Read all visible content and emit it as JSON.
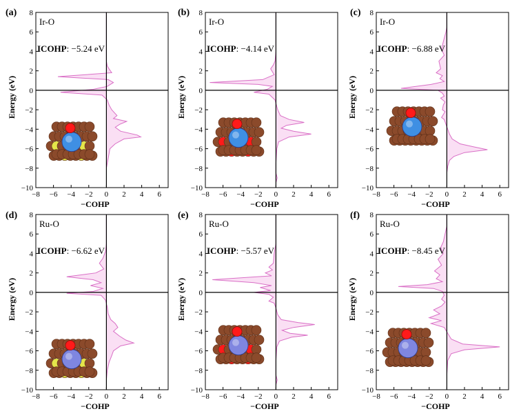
{
  "figure": {
    "line_color": "#d96fc6",
    "fill_color": "#f6c9ec",
    "panels_meta": "six COHP panels, 2 rows x 3 columns"
  },
  "chart_data": [
    {
      "type": "area",
      "panel_label": "(a)",
      "bond": "Ir-O",
      "icohp_label": "ICOHP",
      "icohp_value": ": −5.24 eV",
      "xlabel": "−COHP",
      "ylabel": "Energy (eV)",
      "xlim": [
        -8,
        7
      ],
      "ylim": [
        -10,
        8
      ],
      "xticks": [
        "−8",
        "−6",
        "−4",
        "−2",
        "0",
        "2",
        "4",
        "6"
      ],
      "yticks": [
        "−10",
        "−8",
        "−6",
        "−4",
        "−2",
        "0",
        "2",
        "4",
        "6",
        "8"
      ],
      "structure_metal_color": "#3f8fe3",
      "structure_dopant_color": "#e4e54a",
      "structure_icon": "catalyst-slab-icon",
      "series": [
        {
          "points": [
            [
              0,
              8
            ],
            [
              0,
              3
            ],
            [
              0.1,
              2.5
            ],
            [
              0.3,
              2.2
            ],
            [
              0.6,
              1.8
            ],
            [
              -5.5,
              1.4
            ],
            [
              0.2,
              1.1
            ],
            [
              0.8,
              0.8
            ],
            [
              0.1,
              0.4
            ],
            [
              -1.5,
              0.1
            ],
            [
              -5.2,
              -0.2
            ],
            [
              -0.5,
              -0.5
            ],
            [
              0.1,
              -1
            ],
            [
              0.3,
              -1.5
            ],
            [
              0.6,
              -2
            ],
            [
              1.2,
              -2.6
            ],
            [
              0.8,
              -2.9
            ],
            [
              2.3,
              -3.2
            ],
            [
              1.5,
              -3.5
            ],
            [
              1,
              -3.8
            ],
            [
              1.6,
              -4.2
            ],
            [
              3.5,
              -4.6
            ],
            [
              3.9,
              -4.8
            ],
            [
              2,
              -5
            ],
            [
              1,
              -5.5
            ],
            [
              0.4,
              -6
            ],
            [
              0.2,
              -7
            ],
            [
              0.1,
              -7.5
            ],
            [
              0,
              -8
            ]
          ]
        }
      ]
    },
    {
      "type": "area",
      "panel_label": "(b)",
      "bond": "Ir-O",
      "icohp_label": "ICOHP",
      "icohp_value": ": −4.14 eV",
      "xlabel": "−COHP",
      "ylabel": "Energy (eV)",
      "xlim": [
        -8,
        7
      ],
      "ylim": [
        -10,
        8
      ],
      "xticks": [
        "−8",
        "−6",
        "−4",
        "−2",
        "0",
        "2",
        "4",
        "6"
      ],
      "yticks": [
        "−10",
        "−8",
        "−6",
        "−4",
        "−2",
        "0",
        "2",
        "4",
        "6",
        "8"
      ],
      "structure_metal_color": "#3f8fe3",
      "structure_dopant_color": "#ff1a1a",
      "structure_icon": "catalyst-slab-icon",
      "series": [
        {
          "points": [
            [
              0,
              8
            ],
            [
              0,
              4
            ],
            [
              -0.1,
              3
            ],
            [
              -0.3,
              2.6
            ],
            [
              -0.6,
              2.2
            ],
            [
              -0.2,
              1.6
            ],
            [
              -1.5,
              1.1
            ],
            [
              -7.5,
              0.8
            ],
            [
              -2,
              0.6
            ],
            [
              -0.4,
              0.4
            ],
            [
              -1,
              0.1
            ],
            [
              -2.5,
              -0.2
            ],
            [
              -0.8,
              -0.4
            ],
            [
              -0.1,
              -1
            ],
            [
              0.2,
              -2
            ],
            [
              0.5,
              -2.6
            ],
            [
              1.5,
              -3
            ],
            [
              3.2,
              -3.3
            ],
            [
              1.2,
              -3.6
            ],
            [
              0.6,
              -3.9
            ],
            [
              2,
              -4.2
            ],
            [
              4,
              -4.5
            ],
            [
              1.5,
              -4.8
            ],
            [
              0.3,
              -5.3
            ],
            [
              0.1,
              -6
            ],
            [
              0,
              -7.5
            ],
            [
              0,
              -8.5
            ],
            [
              0.15,
              -9
            ],
            [
              0,
              -9.5
            ]
          ]
        }
      ]
    },
    {
      "type": "area",
      "panel_label": "(c)",
      "bond": "Ir-O",
      "icohp_label": "ICOHP",
      "icohp_value": ": −6.88 eV",
      "xlabel": "−COHP",
      "ylabel": "Energy (eV)",
      "xlim": [
        -8,
        7
      ],
      "ylim": [
        -10,
        8
      ],
      "xticks": [
        "−8",
        "−6",
        "−4",
        "−2",
        "0",
        "2",
        "4",
        "6"
      ],
      "yticks": [
        "−10",
        "−8",
        "−6",
        "−4",
        "−2",
        "0",
        "2",
        "4",
        "6",
        "8"
      ],
      "structure_metal_color": "#3f8fe3",
      "structure_dopant_color": "#8b4a2b",
      "structure_icon": "catalyst-slab-icon",
      "series": [
        {
          "points": [
            [
              0,
              8
            ],
            [
              0,
              6.5
            ],
            [
              -0.1,
              6
            ],
            [
              -0.4,
              5
            ],
            [
              -0.6,
              4.2
            ],
            [
              -0.3,
              3.6
            ],
            [
              -0.9,
              3
            ],
            [
              -0.7,
              2.2
            ],
            [
              -1.2,
              1.8
            ],
            [
              -0.5,
              1.5
            ],
            [
              -0.8,
              1.2
            ],
            [
              -0.3,
              0.9
            ],
            [
              -1.8,
              0.6
            ],
            [
              -5.2,
              0.2
            ],
            [
              -1,
              0
            ],
            [
              -0.5,
              -0.3
            ],
            [
              -0.3,
              -0.6
            ],
            [
              -0.7,
              -0.8
            ],
            [
              -0.2,
              -1.2
            ],
            [
              -0.4,
              -1.5
            ],
            [
              -0.5,
              -2
            ],
            [
              -0.2,
              -2.2
            ],
            [
              -0.6,
              -2.8
            ],
            [
              -0.3,
              -3
            ],
            [
              -0.1,
              -3.5
            ],
            [
              0.1,
              -4
            ],
            [
              0.3,
              -4.5
            ],
            [
              0.6,
              -5
            ],
            [
              1.5,
              -5.5
            ],
            [
              3,
              -5.8
            ],
            [
              4.6,
              -6.1
            ],
            [
              2,
              -6.4
            ],
            [
              0.8,
              -6.8
            ],
            [
              0.3,
              -7.2
            ],
            [
              0.1,
              -7.8
            ],
            [
              0,
              -8.5
            ]
          ]
        }
      ]
    },
    {
      "type": "area",
      "panel_label": "(d)",
      "bond": "Ru-O",
      "icohp_label": "ICOHP",
      "icohp_value": ": −6.62 eV",
      "xlabel": "−COHP",
      "ylabel": "Energy (eV)",
      "xlim": [
        -8,
        7
      ],
      "ylim": [
        -10,
        8
      ],
      "xticks": [
        "−8",
        "−6",
        "−4",
        "−2",
        "0",
        "2",
        "4",
        "6"
      ],
      "yticks": [
        "−10",
        "−8",
        "−6",
        "−4",
        "−2",
        "0",
        "2",
        "4",
        "6",
        "8"
      ],
      "structure_metal_color": "#7f86e0",
      "structure_dopant_color": "#e4e54a",
      "structure_icon": "catalyst-slab-icon",
      "series": [
        {
          "points": [
            [
              0,
              8
            ],
            [
              0,
              5
            ],
            [
              -0.1,
              4.2
            ],
            [
              -0.4,
              3.5
            ],
            [
              -0.8,
              3
            ],
            [
              -0.3,
              2.4
            ],
            [
              -1.2,
              2
            ],
            [
              -4.5,
              1.6
            ],
            [
              -1.5,
              1.3
            ],
            [
              -0.6,
              1
            ],
            [
              -1.8,
              0.7
            ],
            [
              -0.4,
              0.4
            ],
            [
              -1.5,
              0.1
            ],
            [
              -4.5,
              -0.1
            ],
            [
              -0.6,
              -0.3
            ],
            [
              -0.1,
              -0.8
            ],
            [
              0.1,
              -1.5
            ],
            [
              0.2,
              -2.2
            ],
            [
              0.5,
              -2.8
            ],
            [
              1,
              -3.2
            ],
            [
              1.3,
              -3.6
            ],
            [
              0.8,
              -4
            ],
            [
              1.5,
              -4.5
            ],
            [
              2.2,
              -4.9
            ],
            [
              3.1,
              -5.2
            ],
            [
              1.6,
              -5.5
            ],
            [
              0.8,
              -6
            ],
            [
              0.6,
              -6.5
            ],
            [
              0.3,
              -7.2
            ],
            [
              0.1,
              -8
            ],
            [
              0,
              -9
            ]
          ]
        }
      ]
    },
    {
      "type": "area",
      "panel_label": "(e)",
      "bond": "Ru-O",
      "icohp_label": "ICOHP",
      "icohp_value": ": −5.57 eV",
      "xlabel": "−COHP",
      "ylabel": "Energy (eV)",
      "xlim": [
        -8,
        7
      ],
      "ylim": [
        -10,
        8
      ],
      "xticks": [
        "−8",
        "−6",
        "−4",
        "−2",
        "0",
        "2",
        "4",
        "6"
      ],
      "yticks": [
        "−10",
        "−8",
        "−6",
        "−4",
        "−2",
        "0",
        "2",
        "4",
        "6",
        "8"
      ],
      "structure_metal_color": "#7f86e0",
      "structure_dopant_color": "#ff1a1a",
      "structure_icon": "catalyst-slab-icon",
      "series": [
        {
          "points": [
            [
              0,
              8
            ],
            [
              0,
              5
            ],
            [
              -0.2,
              4
            ],
            [
              -0.3,
              3
            ],
            [
              -0.8,
              2.6
            ],
            [
              -0.4,
              2.3
            ],
            [
              -1.2,
              2
            ],
            [
              -0.5,
              1.7
            ],
            [
              -7.2,
              1.3
            ],
            [
              -2.5,
              1
            ],
            [
              -0.5,
              0.7
            ],
            [
              -1.8,
              0.5
            ],
            [
              -0.6,
              0.2
            ],
            [
              -2.5,
              0
            ],
            [
              -0.8,
              -0.2
            ],
            [
              -0.3,
              -0.5
            ],
            [
              -0.8,
              -0.9
            ],
            [
              -0.2,
              -1.1
            ],
            [
              0,
              -1.6
            ],
            [
              0.2,
              -2.3
            ],
            [
              0.6,
              -2.8
            ],
            [
              2.5,
              -3.1
            ],
            [
              4.4,
              -3.3
            ],
            [
              2,
              -3.6
            ],
            [
              0.7,
              -3.9
            ],
            [
              1.6,
              -4.2
            ],
            [
              3.6,
              -4.4
            ],
            [
              1.8,
              -4.6
            ],
            [
              0.4,
              -5
            ],
            [
              0.1,
              -5.6
            ],
            [
              0,
              -7
            ],
            [
              0,
              -8.5
            ],
            [
              0.15,
              -9
            ],
            [
              0,
              -9.5
            ]
          ]
        }
      ]
    },
    {
      "type": "area",
      "panel_label": "(f)",
      "bond": "Ru-O",
      "icohp_label": "ICOHP",
      "icohp_value": ": −8.45 eV",
      "xlabel": "−COHP",
      "ylabel": "Energy (eV)",
      "xlim": [
        -8,
        7
      ],
      "ylim": [
        -10,
        8
      ],
      "xticks": [
        "−8",
        "−6",
        "−4",
        "−2",
        "0",
        "2",
        "4",
        "6"
      ],
      "yticks": [
        "−10",
        "−8",
        "−6",
        "−4",
        "−2",
        "0",
        "2",
        "4",
        "6",
        "8"
      ],
      "structure_metal_color": "#7f86e0",
      "structure_dopant_color": "#8b4a2b",
      "structure_icon": "catalyst-slab-icon",
      "series": [
        {
          "points": [
            [
              0,
              8
            ],
            [
              0,
              6.8
            ],
            [
              -0.2,
              6
            ],
            [
              -0.4,
              5.2
            ],
            [
              -0.7,
              4.6
            ],
            [
              -0.4,
              4
            ],
            [
              -1,
              3.4
            ],
            [
              -0.6,
              2.8
            ],
            [
              -1.4,
              2.2
            ],
            [
              -0.8,
              1.8
            ],
            [
              -1.2,
              1.4
            ],
            [
              -0.5,
              1.1
            ],
            [
              -2.2,
              0.8
            ],
            [
              -5.5,
              0.6
            ],
            [
              -1.5,
              0.4
            ],
            [
              -0.5,
              0.1
            ],
            [
              -0.3,
              -0.3
            ],
            [
              -0.6,
              -0.7
            ],
            [
              -0.2,
              -1
            ],
            [
              -0.6,
              -1.4
            ],
            [
              -1.5,
              -1.8
            ],
            [
              -0.8,
              -2.2
            ],
            [
              -2,
              -2.6
            ],
            [
              -0.6,
              -2.9
            ],
            [
              -1.8,
              -3.2
            ],
            [
              -0.3,
              -3.6
            ],
            [
              0.1,
              -4.2
            ],
            [
              0.5,
              -4.8
            ],
            [
              1.8,
              -5.3
            ],
            [
              6,
              -5.6
            ],
            [
              2,
              -5.9
            ],
            [
              0.5,
              -6.3
            ],
            [
              0.1,
              -7
            ],
            [
              0,
              -8.5
            ]
          ]
        }
      ]
    }
  ]
}
